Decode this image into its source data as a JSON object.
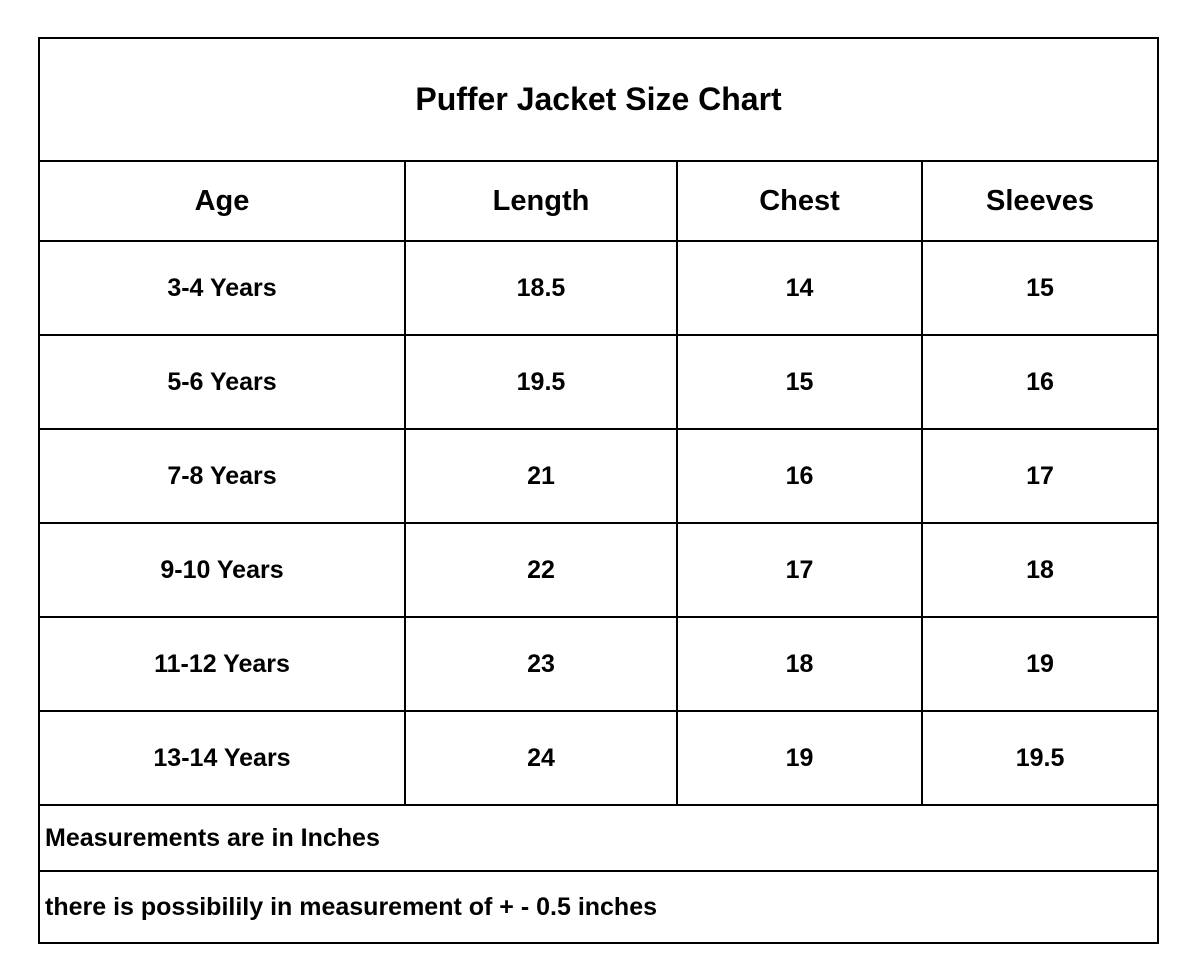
{
  "title": "Puffer Jacket Size Chart",
  "columns": [
    "Age",
    "Length",
    "Chest",
    "Sleeves"
  ],
  "rows": [
    [
      "3-4 Years",
      "18.5",
      "14",
      "15"
    ],
    [
      "5-6 Years",
      "19.5",
      "15",
      "16"
    ],
    [
      "7-8 Years",
      "21",
      "16",
      "17"
    ],
    [
      "9-10 Years",
      "22",
      "17",
      "18"
    ],
    [
      "11-12 Years",
      "23",
      "18",
      "19"
    ],
    [
      "13-14 Years",
      "24",
      "19",
      "19.5"
    ]
  ],
  "notes": [
    "Measurements are in Inches",
    "there is possibilily in measurement of + - 0.5 inches"
  ]
}
